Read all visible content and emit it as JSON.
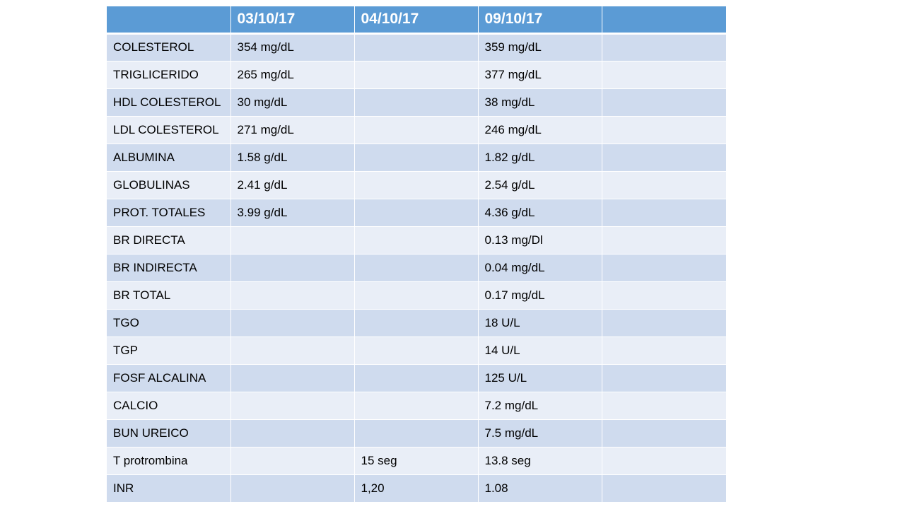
{
  "table": {
    "headers": [
      "",
      "03/10/17",
      "04/10/17",
      "09/10/17",
      ""
    ],
    "rows": [
      [
        "COLESTEROL",
        "354 mg/dL",
        "",
        "359 mg/dL",
        ""
      ],
      [
        "TRIGLICERIDO",
        "265 mg/dL",
        "",
        "377 mg/dL",
        ""
      ],
      [
        "HDL COLESTEROL",
        "30 mg/dL",
        "",
        "38 mg/dL",
        ""
      ],
      [
        "LDL COLESTEROL",
        "271 mg/dL",
        "",
        "246 mg/dL",
        ""
      ],
      [
        "ALBUMINA",
        "1.58 g/dL",
        "",
        "1.82 g/dL",
        ""
      ],
      [
        "GLOBULINAS",
        "2.41 g/dL",
        "",
        "2.54 g/dL",
        ""
      ],
      [
        "PROT. TOTALES",
        "3.99 g/dL",
        "",
        "4.36 g/dL",
        ""
      ],
      [
        "BR DIRECTA",
        "",
        "",
        "0.13 mg/Dl",
        ""
      ],
      [
        "BR INDIRECTA",
        "",
        "",
        "0.04 mg/dL",
        ""
      ],
      [
        "BR TOTAL",
        "",
        "",
        "0.17 mg/dL",
        ""
      ],
      [
        "TGO",
        "",
        "",
        "18 U/L",
        ""
      ],
      [
        "TGP",
        "",
        "",
        "14 U/L",
        ""
      ],
      [
        "FOSF ALCALINA",
        "",
        "",
        "125 U/L",
        ""
      ],
      [
        "CALCIO",
        "",
        "",
        "7.2 mg/dL",
        ""
      ],
      [
        "BUN UREICO",
        "",
        "",
        "7.5 mg/dL",
        ""
      ],
      [
        "T protrombina",
        "",
        "15 seg",
        "13.8 seg",
        ""
      ],
      [
        "INR",
        "",
        "1,20",
        "1.08",
        ""
      ]
    ]
  },
  "colors": {
    "header_bg": "#5b9bd5",
    "row_dark": "#cfdbee",
    "row_light": "#e9eef7"
  }
}
